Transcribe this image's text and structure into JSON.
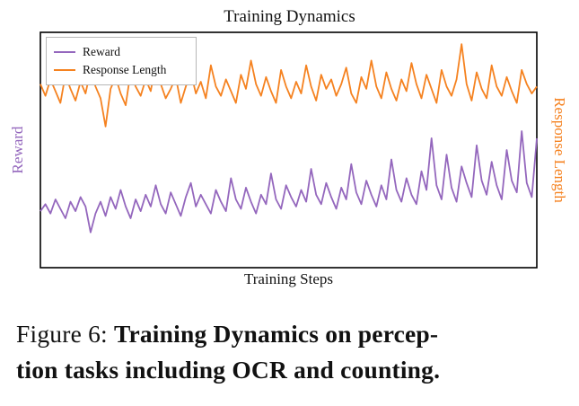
{
  "figure": {
    "caption_label": "Figure 6:",
    "caption_line1": "Training Dynamics on percep-",
    "caption_line2": "tion tasks including OCR and counting."
  },
  "chart_data": {
    "type": "line",
    "title": "Training Dynamics",
    "xlabel": "Training Steps",
    "ylabel_left": "Reward",
    "ylabel_right": "Response Length",
    "x_axis": "training steps (no tick labels shown)",
    "y_axis": "no tick labels shown; values normalized 0-1 of plot height",
    "ylim": [
      0,
      1
    ],
    "grid": false,
    "legend_position": "upper left",
    "legend": [
      "Reward",
      "Response Length"
    ],
    "series": [
      {
        "name": "Reward",
        "axis": "left",
        "color": "#9467bd",
        "values": [
          0.24,
          0.27,
          0.23,
          0.29,
          0.25,
          0.21,
          0.28,
          0.24,
          0.3,
          0.26,
          0.15,
          0.23,
          0.28,
          0.22,
          0.3,
          0.25,
          0.33,
          0.26,
          0.21,
          0.29,
          0.24,
          0.31,
          0.26,
          0.35,
          0.27,
          0.23,
          0.32,
          0.27,
          0.22,
          0.3,
          0.36,
          0.26,
          0.31,
          0.27,
          0.23,
          0.33,
          0.28,
          0.24,
          0.38,
          0.29,
          0.25,
          0.34,
          0.28,
          0.23,
          0.31,
          0.27,
          0.4,
          0.29,
          0.25,
          0.35,
          0.3,
          0.26,
          0.33,
          0.28,
          0.42,
          0.31,
          0.27,
          0.36,
          0.3,
          0.25,
          0.34,
          0.29,
          0.44,
          0.32,
          0.27,
          0.37,
          0.31,
          0.26,
          0.35,
          0.29,
          0.46,
          0.33,
          0.28,
          0.38,
          0.31,
          0.27,
          0.41,
          0.33,
          0.55,
          0.35,
          0.29,
          0.48,
          0.34,
          0.28,
          0.43,
          0.36,
          0.3,
          0.52,
          0.37,
          0.31,
          0.45,
          0.35,
          0.29,
          0.5,
          0.37,
          0.32,
          0.58,
          0.36,
          0.3,
          0.55
        ]
      },
      {
        "name": "Response Length",
        "axis": "right",
        "color": "#f58220",
        "values": [
          0.78,
          0.73,
          0.8,
          0.75,
          0.7,
          0.82,
          0.76,
          0.71,
          0.79,
          0.74,
          0.84,
          0.77,
          0.72,
          0.6,
          0.76,
          0.81,
          0.74,
          0.69,
          0.83,
          0.77,
          0.73,
          0.8,
          0.75,
          0.87,
          0.78,
          0.72,
          0.76,
          0.81,
          0.7,
          0.77,
          0.83,
          0.74,
          0.79,
          0.72,
          0.86,
          0.77,
          0.73,
          0.8,
          0.75,
          0.7,
          0.82,
          0.76,
          0.88,
          0.78,
          0.73,
          0.81,
          0.75,
          0.7,
          0.84,
          0.77,
          0.72,
          0.79,
          0.74,
          0.86,
          0.77,
          0.71,
          0.82,
          0.76,
          0.8,
          0.73,
          0.78,
          0.85,
          0.74,
          0.7,
          0.81,
          0.76,
          0.88,
          0.77,
          0.72,
          0.83,
          0.76,
          0.71,
          0.8,
          0.75,
          0.87,
          0.78,
          0.72,
          0.82,
          0.76,
          0.7,
          0.84,
          0.77,
          0.73,
          0.8,
          0.95,
          0.78,
          0.71,
          0.83,
          0.76,
          0.72,
          0.86,
          0.77,
          0.73,
          0.81,
          0.75,
          0.7,
          0.84,
          0.78,
          0.74,
          0.77
        ]
      }
    ]
  }
}
